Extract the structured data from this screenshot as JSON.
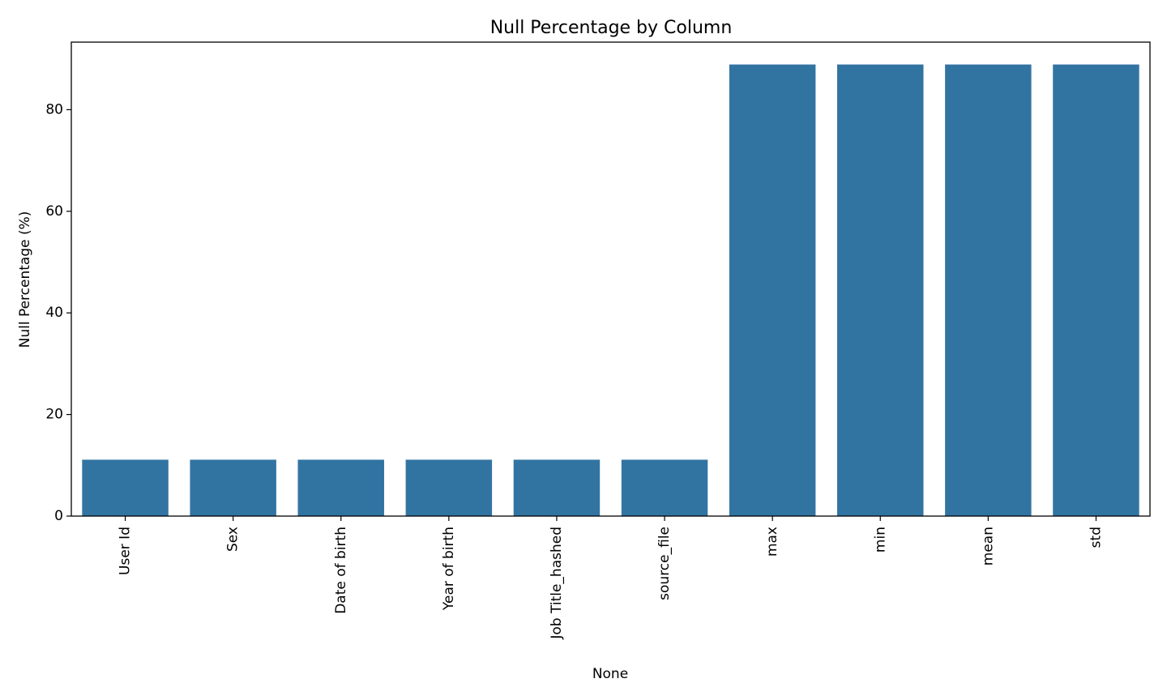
{
  "chart_data": {
    "type": "bar",
    "title": "Null Percentage by Column",
    "xlabel": "None",
    "ylabel": "Null Percentage (%)",
    "categories": [
      "User Id",
      "Sex",
      "Date of birth",
      "Year of birth",
      "Job Title_hashed",
      "source_file",
      "max",
      "min",
      "mean",
      "std"
    ],
    "values": [
      11.1,
      11.1,
      11.1,
      11.1,
      11.1,
      11.1,
      88.9,
      88.9,
      88.9,
      88.9
    ],
    "ylim": [
      0,
      93.3
    ],
    "yticks": [
      0,
      20,
      40,
      60,
      80
    ],
    "bar_color": "#3274a1",
    "grid": false,
    "legend": "none"
  }
}
